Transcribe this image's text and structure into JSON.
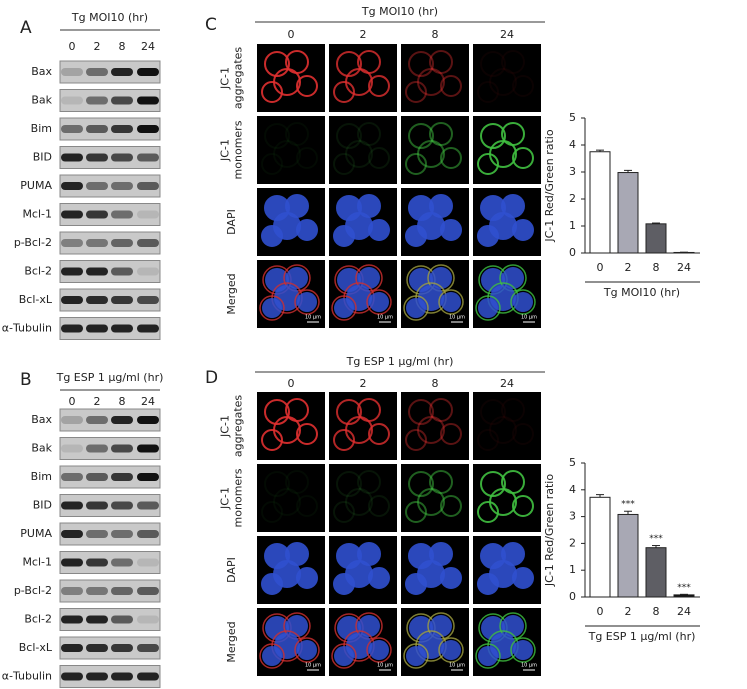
{
  "blot_panels": [
    {
      "label": "A",
      "treatment": "Tg MOI10 (hr)",
      "times": [
        "0",
        "2",
        "8",
        "24"
      ],
      "proteins": [
        "Bax",
        "Bak",
        "Bim",
        "BID",
        "PUMA",
        "Mcl-1",
        "p-Bcl-2",
        "Bcl-2",
        "Bcl-xL",
        "α-Tubulin"
      ]
    },
    {
      "label": "B",
      "treatment": "Tg ESP 1 μg/ml (hr)",
      "times": [
        "0",
        "2",
        "8",
        "24"
      ],
      "proteins": [
        "Bax",
        "Bak",
        "Bim",
        "BID",
        "PUMA",
        "Mcl-1",
        "p-Bcl-2",
        "Bcl-2",
        "Bcl-xL",
        "α-Tubulin"
      ]
    }
  ],
  "image_panels": [
    {
      "label": "C",
      "treatment": "Tg MOI10 (hr)",
      "times": [
        "0",
        "2",
        "8",
        "24"
      ],
      "rows": [
        [
          "JC-1",
          "aggregates"
        ],
        [
          "JC-1",
          "monomers"
        ],
        [
          "DAPI"
        ],
        [
          "Merged"
        ]
      ],
      "scale_bar": "10 μm"
    },
    {
      "label": "D",
      "treatment": "Tg ESP 1 μg/ml (hr)",
      "times": [
        "0",
        "2",
        "8",
        "24"
      ],
      "rows": [
        [
          "JC-1",
          "aggregates"
        ],
        [
          "JC-1",
          "monomers"
        ],
        [
          "DAPI"
        ],
        [
          "Merged"
        ]
      ],
      "scale_bar": "10 μm"
    }
  ],
  "chart_data": [
    {
      "type": "bar",
      "ylabel": "JC-1 Red/Green ratio",
      "xlabel": "Tg MOI10 (hr)",
      "categories": [
        "0",
        "2",
        "8",
        "24"
      ],
      "values": [
        3.75,
        2.98,
        1.08,
        0.02
      ],
      "errors": [
        0.06,
        0.08,
        0.03,
        0.01
      ],
      "colors": [
        "#ffffff",
        "#a8a8b4",
        "#5e5e64",
        "#111111"
      ],
      "ylim": [
        0,
        5
      ],
      "yticks": [
        0,
        1,
        2,
        3,
        4,
        5
      ]
    },
    {
      "type": "bar",
      "ylabel": "JC-1 Red/Green ratio",
      "xlabel": "Tg ESP 1 μg/ml (hr)",
      "categories": [
        "0",
        "2",
        "8",
        "24"
      ],
      "values": [
        3.72,
        3.08,
        1.84,
        0.08
      ],
      "errors": [
        0.1,
        0.12,
        0.08,
        0.02
      ],
      "annotations": [
        null,
        "***",
        "***",
        "***"
      ],
      "colors": [
        "#ffffff",
        "#a8a8b4",
        "#5e5e64",
        "#111111"
      ],
      "ylim": [
        0,
        5
      ],
      "yticks": [
        0,
        1,
        2,
        3,
        4,
        5
      ]
    }
  ]
}
